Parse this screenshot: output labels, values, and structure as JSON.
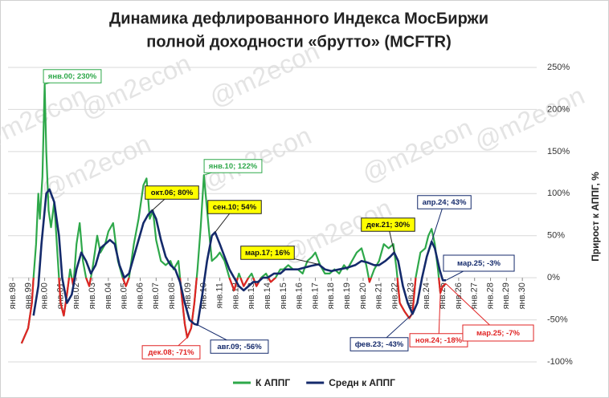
{
  "chart_data": {
    "type": "line",
    "title": [
      "Динамика дефлированного Индекса МосБиржи",
      "полной доходности «брутто» (MCFTR)"
    ],
    "y_label": "Прирост к АППГ, %",
    "watermark": "@m2econ",
    "xlim": [
      1997.7,
      2030.9
    ],
    "ylim": [
      -100,
      250
    ],
    "xticks": [
      {
        "value": 1998,
        "label": "янв.98"
      },
      {
        "value": 1999,
        "label": "янв.99"
      },
      {
        "value": 2000,
        "label": "янв.00"
      },
      {
        "value": 2001,
        "label": "янв.01"
      },
      {
        "value": 2002,
        "label": "янв.02"
      },
      {
        "value": 2003,
        "label": "янв.03"
      },
      {
        "value": 2004,
        "label": "янв.04"
      },
      {
        "value": 2005,
        "label": "янв.05"
      },
      {
        "value": 2006,
        "label": "янв.06"
      },
      {
        "value": 2007,
        "label": "янв.07"
      },
      {
        "value": 2008,
        "label": "янв.08"
      },
      {
        "value": 2009,
        "label": "янв.09"
      },
      {
        "value": 2010,
        "label": "янв.10"
      },
      {
        "value": 2011,
        "label": "янв.11"
      },
      {
        "value": 2012,
        "label": "янв.12"
      },
      {
        "value": 2013,
        "label": "янв.13"
      },
      {
        "value": 2014,
        "label": "янв.14"
      },
      {
        "value": 2015,
        "label": "янв.15"
      },
      {
        "value": 2016,
        "label": "янв.16"
      },
      {
        "value": 2017,
        "label": "янв.17"
      },
      {
        "value": 2018,
        "label": "янв.18"
      },
      {
        "value": 2019,
        "label": "янв.19"
      },
      {
        "value": 2020,
        "label": "янв.20"
      },
      {
        "value": 2021,
        "label": "янв.21"
      },
      {
        "value": 2022,
        "label": "янв.22"
      },
      {
        "value": 2023,
        "label": "янв.23"
      },
      {
        "value": 2024,
        "label": "янв.24"
      },
      {
        "value": 2025,
        "label": "янв.25"
      },
      {
        "value": 2026,
        "label": "янв.26"
      },
      {
        "value": 2027,
        "label": "янв.27"
      },
      {
        "value": 2028,
        "label": "янв.28"
      },
      {
        "value": 2029,
        "label": "янв.29"
      },
      {
        "value": 2030,
        "label": "янв.30"
      }
    ],
    "yticks": [
      {
        "value": 250,
        "label": "250%"
      },
      {
        "value": 200,
        "label": "200%"
      },
      {
        "value": 150,
        "label": "150%"
      },
      {
        "value": 100,
        "label": "100%"
      },
      {
        "value": 50,
        "label": "50%"
      },
      {
        "value": 0,
        "label": "0%"
      },
      {
        "value": -50,
        "label": "-50%"
      },
      {
        "value": -100,
        "label": "-100%"
      }
    ],
    "grid": true,
    "legend": "bottom",
    "series": [
      {
        "name": "К АППГ",
        "color": "#2ea84a",
        "negative_color": "#e02424",
        "x": [
          1998.55,
          1998.96,
          1999.2,
          1999.3,
          1999.46,
          1999.6,
          1999.7,
          1999.86,
          2000.0,
          2000.1,
          2000.25,
          2000.4,
          2000.6,
          2000.8,
          2001.0,
          2001.2,
          2001.4,
          2001.6,
          2001.8,
          2002.0,
          2002.2,
          2002.4,
          2002.6,
          2002.8,
          2003.0,
          2003.3,
          2003.5,
          2003.8,
          2004.0,
          2004.3,
          2004.6,
          2004.9,
          2005.1,
          2005.3,
          2005.6,
          2005.9,
          2006.2,
          2006.4,
          2006.6,
          2006.8,
          2007.0,
          2007.3,
          2007.6,
          2007.9,
          2008.1,
          2008.4,
          2008.6,
          2008.8,
          2008.95,
          2009.2,
          2009.4,
          2009.6,
          2009.8,
          2010.0,
          2010.3,
          2010.5,
          2010.8,
          2011.0,
          2011.3,
          2011.6,
          2011.9,
          2012.2,
          2012.5,
          2012.8,
          2013.0,
          2013.3,
          2013.6,
          2013.9,
          2014.2,
          2014.5,
          2014.8,
          2015.0,
          2015.3,
          2015.6,
          2015.9,
          2016.2,
          2016.5,
          2016.8,
          2017.0,
          2017.3,
          2017.6,
          2017.9,
          2018.2,
          2018.5,
          2018.8,
          2019.0,
          2019.3,
          2019.6,
          2019.9,
          2020.2,
          2020.4,
          2020.7,
          2021.0,
          2021.3,
          2021.6,
          2021.9,
          2022.1,
          2022.3,
          2022.6,
          2022.9,
          2023.1,
          2023.3,
          2023.6,
          2023.9,
          2024.1,
          2024.3,
          2024.5,
          2024.7,
          2024.85,
          2025.0,
          2025.2
        ],
        "values": [
          -78,
          -60,
          -30,
          0,
          40,
          100,
          70,
          120,
          230,
          150,
          80,
          60,
          90,
          30,
          -30,
          -45,
          -20,
          10,
          -10,
          40,
          65,
          20,
          0,
          -10,
          10,
          50,
          30,
          40,
          55,
          65,
          20,
          0,
          -10,
          0,
          40,
          70,
          110,
          118,
          70,
          80,
          45,
          20,
          15,
          20,
          10,
          20,
          -20,
          -55,
          -71,
          -60,
          -30,
          10,
          60,
          122,
          60,
          20,
          25,
          30,
          20,
          0,
          -15,
          5,
          -10,
          0,
          5,
          -10,
          0,
          5,
          -5,
          0,
          10,
          10,
          15,
          10,
          10,
          5,
          20,
          25,
          30,
          15,
          5,
          5,
          10,
          5,
          15,
          10,
          20,
          30,
          35,
          15,
          -5,
          10,
          20,
          40,
          35,
          40,
          10,
          -30,
          -40,
          -48,
          -42,
          0,
          30,
          35,
          50,
          58,
          40,
          10,
          -18,
          -10,
          -7
        ]
      },
      {
        "name": "Средн к АППГ",
        "color": "#142a6b",
        "x": [
          1999.3,
          1999.6,
          1999.8,
          2000.1,
          2000.3,
          2000.6,
          2000.9,
          2001.1,
          2001.4,
          2001.7,
          2002.0,
          2002.3,
          2002.6,
          2002.9,
          2003.2,
          2003.5,
          2003.8,
          2004.1,
          2004.4,
          2004.7,
          2005.0,
          2005.3,
          2005.6,
          2005.9,
          2006.2,
          2006.5,
          2006.75,
          2007.0,
          2007.3,
          2007.6,
          2007.9,
          2008.2,
          2008.5,
          2008.8,
          2009.1,
          2009.4,
          2009.6,
          2009.9,
          2010.2,
          2010.5,
          2010.7,
          2011.0,
          2011.3,
          2011.6,
          2011.9,
          2012.2,
          2012.5,
          2012.8,
          2013.1,
          2013.4,
          2013.7,
          2014.0,
          2014.4,
          2014.8,
          2015.1,
          2015.5,
          2015.9,
          2016.3,
          2016.7,
          2017.2,
          2017.6,
          2018.0,
          2018.5,
          2019.0,
          2019.5,
          2019.9,
          2020.3,
          2020.7,
          2021.0,
          2021.4,
          2021.7,
          2021.95,
          2022.2,
          2022.5,
          2022.8,
          2023.1,
          2023.4,
          2023.7,
          2024.0,
          2024.3,
          2024.5,
          2024.8,
          2025.0,
          2025.2
        ],
        "values": [
          -45,
          -10,
          40,
          100,
          105,
          90,
          50,
          0,
          -30,
          -20,
          10,
          30,
          20,
          5,
          15,
          35,
          40,
          45,
          40,
          15,
          0,
          5,
          25,
          45,
          65,
          75,
          80,
          70,
          45,
          25,
          15,
          10,
          -5,
          -30,
          -50,
          -55,
          -56,
          -20,
          20,
          50,
          54,
          40,
          25,
          10,
          0,
          -10,
          -15,
          -10,
          -5,
          -5,
          0,
          0,
          5,
          5,
          10,
          10,
          10,
          12,
          14,
          16,
          10,
          8,
          10,
          12,
          15,
          20,
          18,
          15,
          15,
          20,
          25,
          30,
          20,
          -10,
          -30,
          -43,
          -30,
          0,
          25,
          43,
          35,
          10,
          -3,
          -3
        ]
      }
    ],
    "annotations": [
      {
        "text": "янв.00; 230%",
        "x": 2000.0,
        "y": 230,
        "border": "#2ea84a",
        "fill": "#ffffff",
        "text_color": "#2ea84a"
      },
      {
        "text": "окт.06; 80%",
        "x": 2006.75,
        "y": 80,
        "border": "#222222",
        "fill": "#ffff00",
        "text_color": "#111111"
      },
      {
        "text": "янв.10; 122%",
        "x": 2010.0,
        "y": 122,
        "border": "#2ea84a",
        "fill": "#ffffff",
        "text_color": "#2ea84a"
      },
      {
        "text": "сен.10; 54%",
        "x": 2010.7,
        "y": 54,
        "border": "#222222",
        "fill": "#ffff00",
        "text_color": "#111111"
      },
      {
        "text": "мар.17; 16%",
        "x": 2017.2,
        "y": 16,
        "border": "#222222",
        "fill": "#ffff00",
        "text_color": "#111111"
      },
      {
        "text": "дек.21; 30%",
        "x": 2021.95,
        "y": 30,
        "border": "#222222",
        "fill": "#ffff00",
        "text_color": "#111111"
      },
      {
        "text": "апр.24; 43%",
        "x": 2024.3,
        "y": 43,
        "border": "#142a6b",
        "fill": "#ffffff",
        "text_color": "#142a6b"
      },
      {
        "text": "мар.25; -3%",
        "x": 2025.2,
        "y": -3,
        "border": "#142a6b",
        "fill": "#ffffff",
        "text_color": "#142a6b"
      },
      {
        "text": "дек.08; -71%",
        "x": 2008.95,
        "y": -71,
        "border": "#e02424",
        "fill": "#ffffff",
        "text_color": "#e02424"
      },
      {
        "text": "авг.09; -56%",
        "x": 2009.6,
        "y": -56,
        "border": "#142a6b",
        "fill": "#ffffff",
        "text_color": "#142a6b"
      },
      {
        "text": "фев.23; -43%",
        "x": 2023.1,
        "y": -43,
        "border": "#142a6b",
        "fill": "#ffffff",
        "text_color": "#142a6b"
      },
      {
        "text": "ноя.24; -18%",
        "x": 2024.85,
        "y": -18,
        "border": "#e02424",
        "fill": "#ffffff",
        "text_color": "#e02424"
      },
      {
        "text": "мар.25; -7%",
        "x": 2025.2,
        "y": -7,
        "border": "#e02424",
        "fill": "#ffffff",
        "text_color": "#e02424"
      }
    ]
  }
}
